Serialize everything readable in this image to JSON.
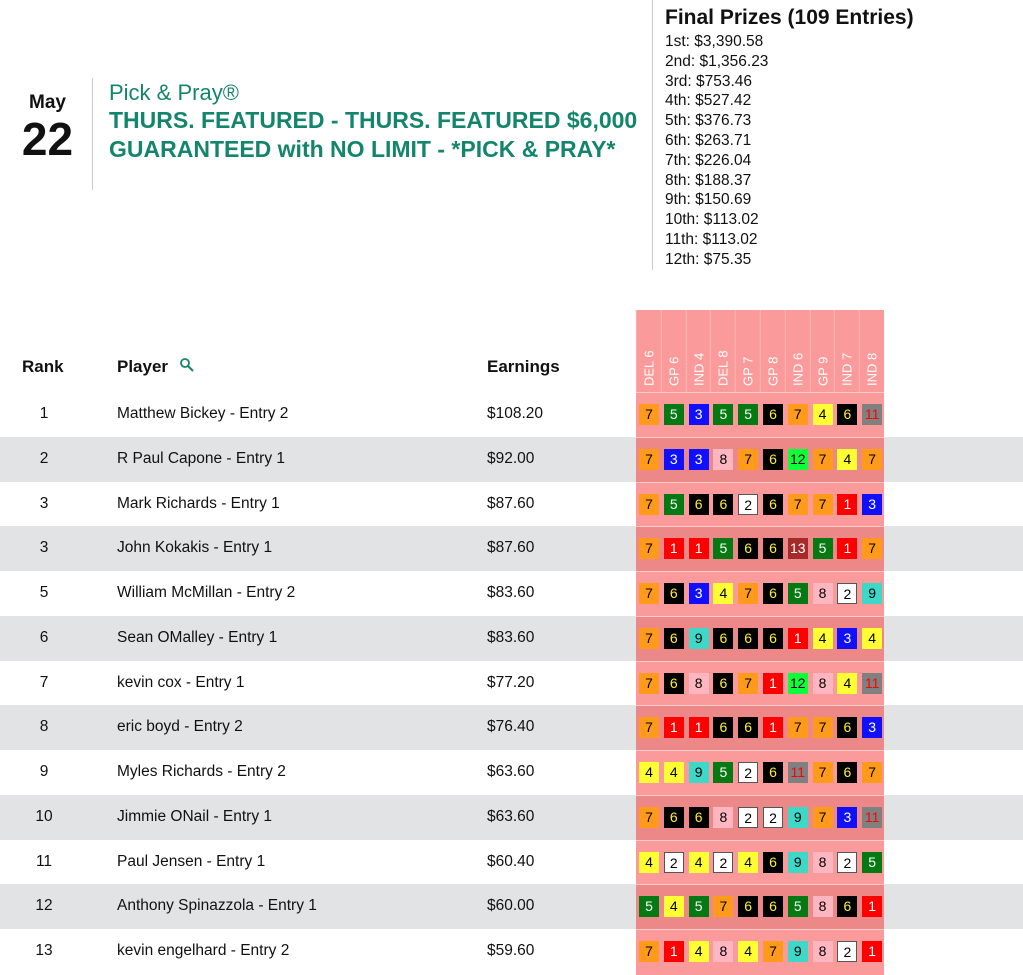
{
  "date": {
    "month": "May",
    "day": "22"
  },
  "title": {
    "sub": "Pick & Pray®",
    "main": "THURS. FEATURED - THURS. FEATURED $6,000 GUARANTEED with NO LIMIT - *PICK & PRAY*"
  },
  "prizes": {
    "heading": "Final Prizes (109 Entries)",
    "items": [
      "1st: $3,390.58",
      "2nd: $1,356.23",
      "3rd: $753.46",
      "4th: $527.42",
      "5th: $376.73",
      "6th: $263.71",
      "7th: $226.04",
      "8th: $188.37",
      "9th: $150.69",
      "10th: $113.02",
      "11th: $113.02",
      "12th: $75.35"
    ]
  },
  "table": {
    "headers": {
      "rank": "Rank",
      "player": "Player",
      "earnings": "Earnings"
    },
    "races": [
      "DEL 6",
      "GP 6",
      "IND 4",
      "DEL 8",
      "GP 7",
      "GP 8",
      "IND 6",
      "GP 9",
      "IND 7",
      "IND 8"
    ],
    "rows": [
      {
        "rank": "1",
        "player": "Matthew Bickey - Entry 2",
        "earnings": "$108.20",
        "picks": [
          7,
          5,
          3,
          5,
          5,
          6,
          7,
          4,
          6,
          11
        ]
      },
      {
        "rank": "2",
        "player": "R Paul Capone - Entry 1",
        "earnings": "$92.00",
        "picks": [
          7,
          3,
          3,
          8,
          7,
          6,
          12,
          7,
          4,
          7
        ]
      },
      {
        "rank": "3",
        "player": "Mark Richards - Entry 1",
        "earnings": "$87.60",
        "picks": [
          7,
          5,
          6,
          6,
          2,
          6,
          7,
          7,
          1,
          3
        ]
      },
      {
        "rank": "3",
        "player": "John Kokakis - Entry 1",
        "earnings": "$87.60",
        "picks": [
          7,
          1,
          1,
          5,
          6,
          6,
          13,
          5,
          1,
          7
        ]
      },
      {
        "rank": "5",
        "player": "William McMillan - Entry 2",
        "earnings": "$83.60",
        "picks": [
          7,
          6,
          3,
          4,
          7,
          6,
          5,
          8,
          2,
          9
        ]
      },
      {
        "rank": "6",
        "player": "Sean OMalley - Entry 1",
        "earnings": "$83.60",
        "picks": [
          7,
          6,
          9,
          6,
          6,
          6,
          1,
          4,
          3,
          4
        ]
      },
      {
        "rank": "7",
        "player": "kevin cox - Entry 1",
        "earnings": "$77.20",
        "picks": [
          7,
          6,
          8,
          6,
          7,
          1,
          12,
          8,
          4,
          11
        ]
      },
      {
        "rank": "8",
        "player": "eric boyd - Entry 2",
        "earnings": "$76.40",
        "picks": [
          7,
          1,
          1,
          6,
          6,
          1,
          7,
          7,
          6,
          3
        ]
      },
      {
        "rank": "9",
        "player": "Myles Richards - Entry 2",
        "earnings": "$63.60",
        "picks": [
          4,
          4,
          9,
          5,
          2,
          6,
          11,
          7,
          6,
          7
        ]
      },
      {
        "rank": "10",
        "player": "Jimmie ONail - Entry 1",
        "earnings": "$63.60",
        "picks": [
          7,
          6,
          6,
          8,
          2,
          2,
          9,
          7,
          3,
          11
        ]
      },
      {
        "rank": "11",
        "player": "Paul Jensen - Entry 1",
        "earnings": "$60.40",
        "picks": [
          4,
          2,
          4,
          2,
          4,
          6,
          9,
          8,
          2,
          5
        ]
      },
      {
        "rank": "12",
        "player": "Anthony Spinazzola - Entry 1",
        "earnings": "$60.00",
        "picks": [
          5,
          4,
          5,
          7,
          6,
          6,
          5,
          8,
          6,
          1
        ]
      },
      {
        "rank": "13",
        "player": "kevin engelhard - Entry 2",
        "earnings": "$59.60",
        "picks": [
          7,
          1,
          4,
          8,
          4,
          7,
          9,
          8,
          2,
          1
        ]
      }
    ]
  },
  "colors": {
    "accent": "#14856d",
    "race_column": "#fb9a9a",
    "saddle": {
      "1": [
        "#ff0000",
        "#fff"
      ],
      "2": [
        "#ffffff",
        "#000"
      ],
      "3": [
        "#1010ff",
        "#fff"
      ],
      "4": [
        "#ffff33",
        "#000"
      ],
      "5": [
        "#067a12",
        "#fff"
      ],
      "6": [
        "#000000",
        "#ffee33"
      ],
      "7": [
        "#ff9a1a",
        "#000"
      ],
      "8": [
        "#ffb6c1",
        "#000"
      ],
      "9": [
        "#3dd8c8",
        "#000"
      ],
      "11": [
        "#808080",
        "#ff0000"
      ],
      "12": [
        "#0dff3a",
        "#000"
      ],
      "13": [
        "#a52a2a",
        "#fff"
      ]
    }
  }
}
